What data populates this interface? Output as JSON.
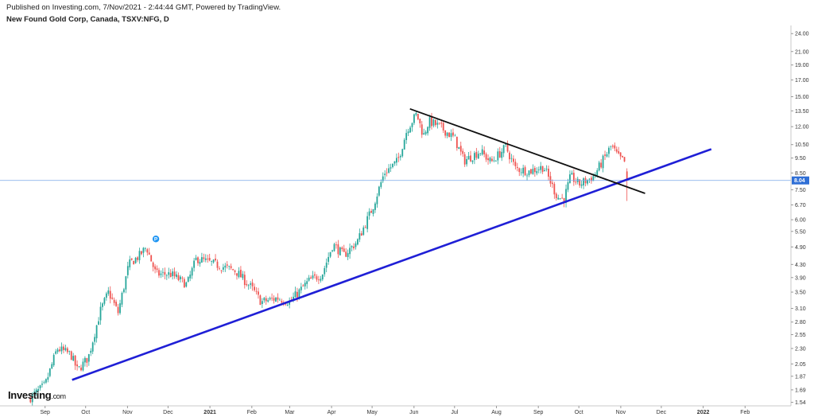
{
  "header": {
    "published": "Published on Investing.com, 7/Nov/2021 - 2:44:44 GMT, Powered by TradingView.",
    "symbol": "New Found Gold Corp, Canada, TSXV:NFG, D"
  },
  "brand": {
    "name": "Investing",
    "suffix": ".com"
  },
  "chart_data": {
    "type": "candlestick",
    "title": "New Found Gold Corp, Canada, TSXV:NFG, D",
    "y_scale": "log",
    "ylim": [
      1.5,
      25.5
    ],
    "y_ticks": [
      "24.00",
      "21.00",
      "19.00",
      "17.00",
      "15.00",
      "13.50",
      "12.00",
      "10.50",
      "9.50",
      "8.50",
      "7.50",
      "6.70",
      "6.00",
      "5.50",
      "4.90",
      "4.30",
      "3.90",
      "3.50",
      "3.10",
      "2.80",
      "2.55",
      "2.30",
      "2.05",
      "1.87",
      "1.69",
      "1.54"
    ],
    "x_ticks": [
      "Sep",
      "Oct",
      "Nov",
      "Dec",
      "2021",
      "Feb",
      "Mar",
      "Apr",
      "May",
      "Jun",
      "Jul",
      "Aug",
      "Sep",
      "Oct",
      "Nov",
      "Dec",
      "2022",
      "Feb"
    ],
    "bold_x_ticks": [
      "2021",
      "2022"
    ],
    "last_price": "8.04",
    "up_color": "#26a69a",
    "down_color": "#ef5350",
    "close_path": [
      [
        "Aug 20, 2020",
        1.58
      ],
      [
        "Sep 1, 2020",
        1.75
      ],
      [
        "Sep 10, 2020",
        2.3
      ],
      [
        "Sep 20, 2020",
        2.2
      ],
      [
        "Sep 25, 2020",
        1.95
      ],
      [
        "Oct 3, 2020",
        2.15
      ],
      [
        "Oct 12, 2020",
        3.05
      ],
      [
        "Oct 18, 2020",
        3.5
      ],
      [
        "Oct 25, 2020",
        3.0
      ],
      [
        "Nov 2, 2020",
        4.3
      ],
      [
        "Nov 10, 2020",
        4.6
      ],
      [
        "Nov 15, 2020",
        4.9
      ],
      [
        "Nov 22, 2020",
        4.0
      ],
      [
        "Dec 3, 2020",
        4.0
      ],
      [
        "Dec 15, 2020",
        3.7
      ],
      [
        "Dec 22, 2020",
        4.5
      ],
      [
        "Jan 5, 2021",
        4.3
      ],
      [
        "Jan 20, 2021",
        4.1
      ],
      [
        "Feb 1, 2021",
        3.6
      ],
      [
        "Feb 8, 2021",
        3.25
      ],
      [
        "Feb 20, 2021",
        3.35
      ],
      [
        "Mar 1, 2021",
        3.25
      ],
      [
        "Mar 15, 2021",
        3.8
      ],
      [
        "Mar 25, 2021",
        4.0
      ],
      [
        "Apr 2, 2021",
        5.0
      ],
      [
        "Apr 10, 2021",
        4.6
      ],
      [
        "Apr 20, 2021",
        5.1
      ],
      [
        "May 1, 2021",
        6.5
      ],
      [
        "May 10, 2021",
        8.5
      ],
      [
        "May 20, 2021",
        9.3
      ],
      [
        "May 27, 2021",
        11.8
      ],
      [
        "Jun 3, 2021",
        13.2
      ],
      [
        "Jun 8, 2021",
        11.2
      ],
      [
        "Jun 12, 2021",
        12.5
      ],
      [
        "Jun 20, 2021",
        12.0
      ],
      [
        "Jul 1, 2021",
        11.0
      ],
      [
        "Jul 8, 2021",
        9.3
      ],
      [
        "Jul 20, 2021",
        10.0
      ],
      [
        "Jul 28, 2021",
        9.2
      ],
      [
        "Aug 8, 2021",
        10.3
      ],
      [
        "Aug 15, 2021",
        8.8
      ],
      [
        "Aug 25, 2021",
        8.6
      ],
      [
        "Sep 5, 2021",
        8.9
      ],
      [
        "Sep 15, 2021",
        7.1
      ],
      [
        "Sep 20, 2021",
        7.0
      ],
      [
        "Sep 25, 2021",
        8.3
      ],
      [
        "Oct 1, 2021",
        7.8
      ],
      [
        "Oct 8, 2021",
        8.1
      ],
      [
        "Oct 12, 2021",
        8.3
      ],
      [
        "Oct 18, 2021",
        9.2
      ],
      [
        "Oct 25, 2021",
        10.4
      ],
      [
        "Oct 30, 2021",
        9.6
      ],
      [
        "Nov 4, 2021",
        9.2
      ],
      [
        "Nov 5, 2021",
        8.04
      ]
    ],
    "trendlines": [
      {
        "name": "support",
        "color": "#1f1fd6",
        "points": [
          [
            "Sep 21, 2020",
            1.82
          ],
          [
            "Jan 7, 2022",
            10.15
          ]
        ]
      },
      {
        "name": "resistance",
        "color": "#111111",
        "points": [
          [
            "May 29, 2021",
            13.7
          ],
          [
            "Nov 19, 2021",
            7.3
          ]
        ]
      }
    ],
    "markers": [
      {
        "label": "P",
        "date": "Nov 22, 2020",
        "color": "#2196f3"
      }
    ]
  }
}
